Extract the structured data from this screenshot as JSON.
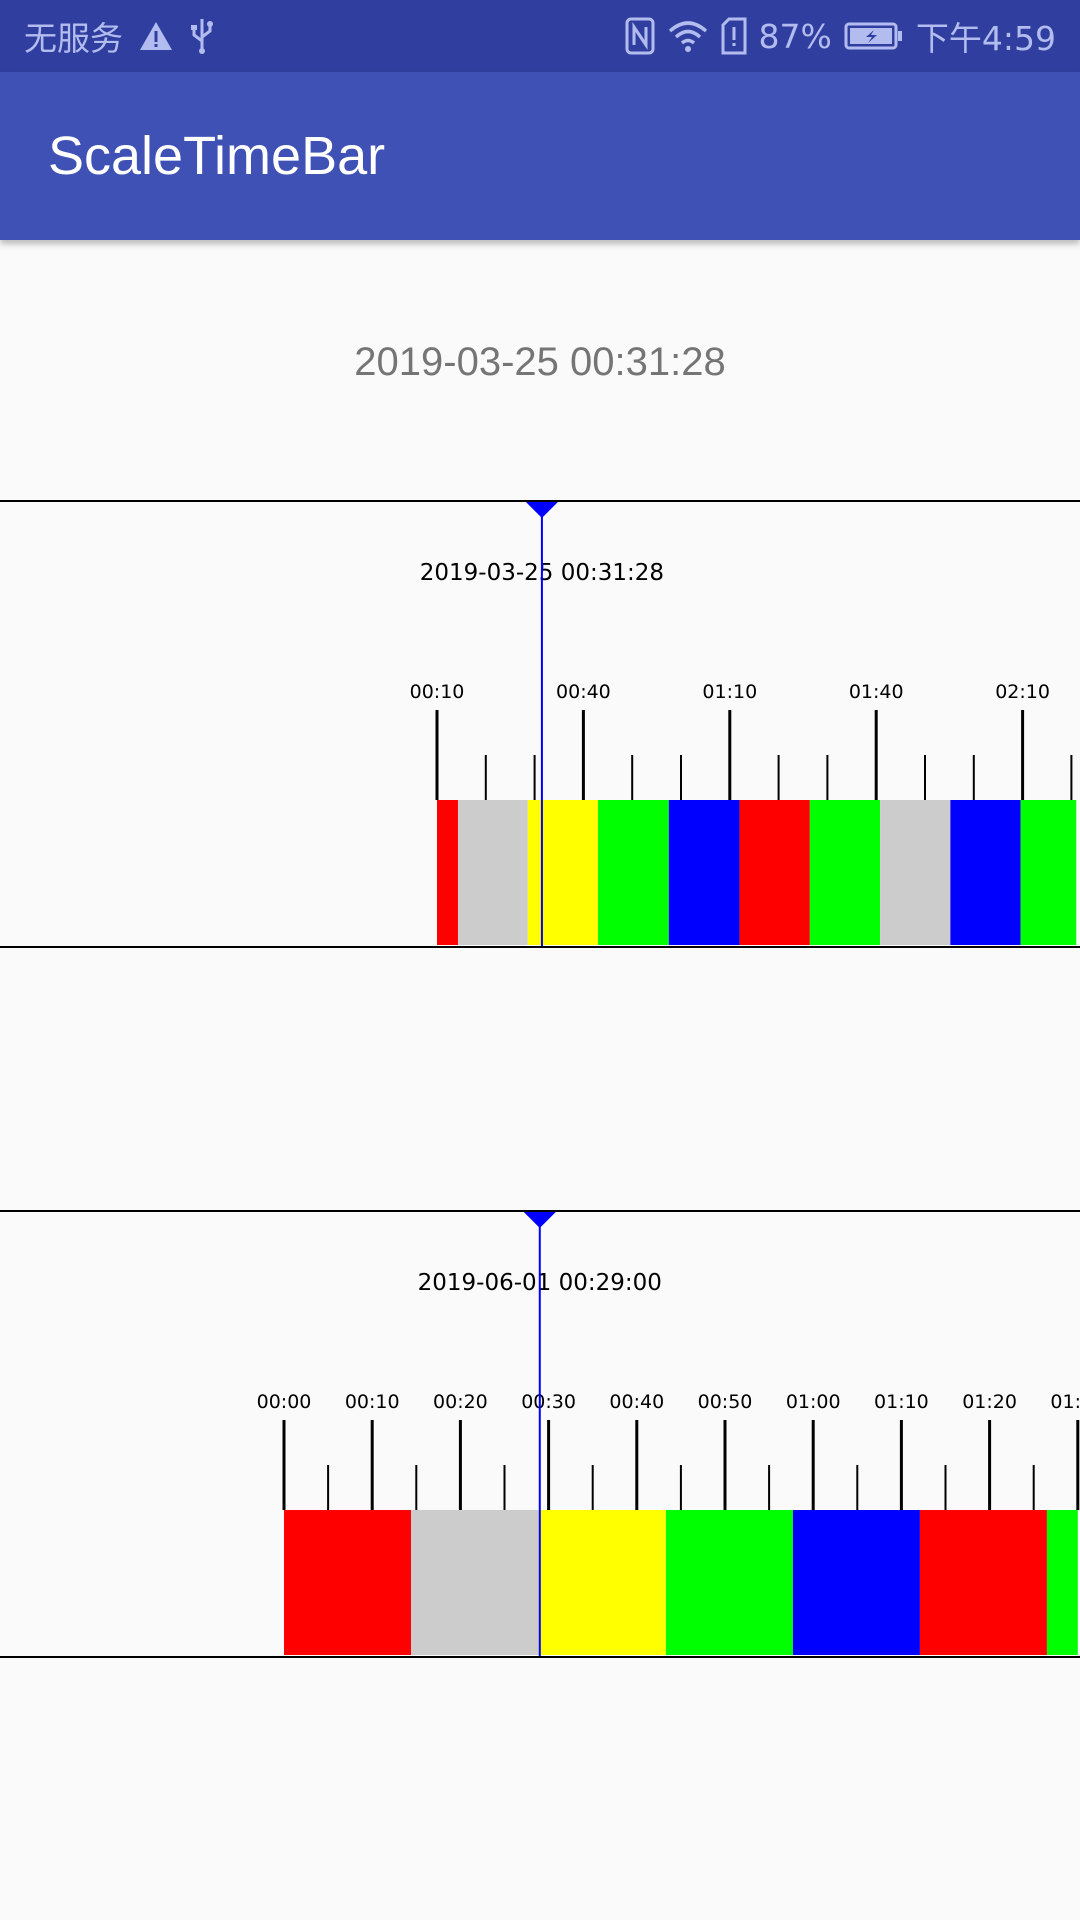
{
  "status_bar": {
    "carrier": "无服务",
    "battery_percent": "87%",
    "time": "下午4:59",
    "icons": [
      "warning-icon",
      "usb-icon",
      "nfc-icon",
      "wifi-icon",
      "sim-alert-icon",
      "battery-charging-icon"
    ]
  },
  "app_bar": {
    "title": "ScaleTimeBar",
    "background_color": "#3f51b5"
  },
  "current_time": "2019-03-25 00:31:28",
  "timebars": [
    {
      "cursor_label": "2019-03-25 00:31:28",
      "cursor_color": "#0000ff",
      "data_start_minutes": 10,
      "axis_start_minutes": 10,
      "axis_end_minutes": 141,
      "cursor_minutes": 31.5,
      "major_tick_labels": [
        "00:10",
        "00:40",
        "01:10",
        "01:40",
        "02:10"
      ],
      "major_tick_minutes": [
        10,
        40,
        70,
        100,
        130
      ],
      "minor_tick_minutes": [
        20,
        30,
        50,
        60,
        80,
        90,
        110,
        120,
        140
      ],
      "segments": [
        {
          "start": 10,
          "end": 14.3,
          "color": "#ff0000"
        },
        {
          "start": 14.3,
          "end": 28.6,
          "color": "#cccccc"
        },
        {
          "start": 28.6,
          "end": 43,
          "color": "#ffff00"
        },
        {
          "start": 43,
          "end": 57.5,
          "color": "#00ff00"
        },
        {
          "start": 57.5,
          "end": 72,
          "color": "#0000ff"
        },
        {
          "start": 72,
          "end": 86.4,
          "color": "#ff0000"
        },
        {
          "start": 86.4,
          "end": 100.8,
          "color": "#00ff00"
        },
        {
          "start": 100.8,
          "end": 115.2,
          "color": "#cccccc"
        },
        {
          "start": 115.2,
          "end": 129.6,
          "color": "#0000ff"
        },
        {
          "start": 129.6,
          "end": 141,
          "color": "#00ff00"
        }
      ]
    },
    {
      "cursor_label": "2019-06-01 00:29:00",
      "cursor_color": "#0000ff",
      "data_start_minutes": 0,
      "axis_start_minutes": 0,
      "axis_end_minutes": 90,
      "cursor_minutes": 29,
      "major_tick_labels": [
        "00:00",
        "00:10",
        "00:20",
        "00:30",
        "00:40",
        "00:50",
        "01:00",
        "01:10",
        "01:20",
        "01:30"
      ],
      "major_tick_minutes": [
        0,
        10,
        20,
        30,
        40,
        50,
        60,
        70,
        80,
        90
      ],
      "minor_tick_minutes": [
        5,
        15,
        25,
        35,
        45,
        55,
        65,
        75,
        85
      ],
      "segments": [
        {
          "start": 0,
          "end": 14.4,
          "color": "#ff0000"
        },
        {
          "start": 14.4,
          "end": 28.9,
          "color": "#cccccc"
        },
        {
          "start": 28.9,
          "end": 43.3,
          "color": "#ffff00"
        },
        {
          "start": 43.3,
          "end": 57.7,
          "color": "#00ff00"
        },
        {
          "start": 57.7,
          "end": 72.1,
          "color": "#0000ff"
        },
        {
          "start": 72.1,
          "end": 86.5,
          "color": "#ff0000"
        },
        {
          "start": 86.5,
          "end": 90,
          "color": "#00ff00"
        }
      ]
    }
  ]
}
